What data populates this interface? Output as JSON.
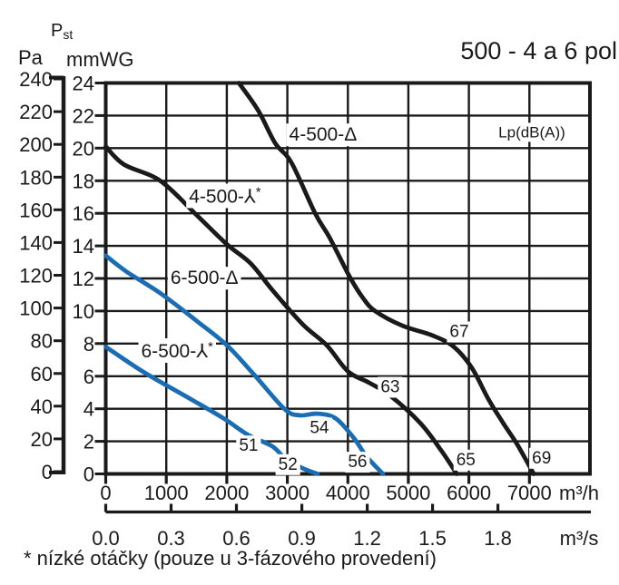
{
  "chart_data": {
    "type": "line",
    "title": "500 - 4 a 6 pol",
    "quantity_label": {
      "main": "P",
      "sub": "st"
    },
    "legend_note": "Lp(dB(A))",
    "legend_note_pos": [
      7040,
      21.0
    ],
    "x_axis": {
      "unit": "m³/h",
      "range": [
        0,
        8000
      ],
      "gridline_step": 1000,
      "ticks": [
        0,
        1000,
        2000,
        3000,
        4000,
        5000,
        6000,
        7000
      ]
    },
    "x_axis_secondary": {
      "unit": "m³/s",
      "conversion_m3h_per_m3s": 3600,
      "ticks": [
        "0.0",
        "0.3",
        "0.6",
        "0.9",
        "1.2",
        "1.5",
        "1.8"
      ]
    },
    "y_axis": {
      "unit": "mmWG",
      "range": [
        0,
        24
      ],
      "gridline_step": 2,
      "ticks": [
        0,
        2,
        4,
        6,
        8,
        10,
        12,
        14,
        16,
        18,
        20,
        22,
        24
      ]
    },
    "y_axis_pa": {
      "unit": "Pa",
      "range": [
        0,
        240
      ],
      "ticks": [
        0,
        20,
        40,
        60,
        80,
        100,
        120,
        140,
        160,
        180,
        200,
        220,
        240
      ]
    },
    "series": [
      {
        "name": "4-500-Δ",
        "slug": "4-500-delta",
        "color": "#1a1a1a",
        "label_pos": [
          3590,
          20.9
        ],
        "points": [
          [
            2200,
            24
          ],
          [
            2520,
            22.3
          ],
          [
            2800,
            20.3
          ],
          [
            3070,
            19.1
          ],
          [
            3460,
            16.0
          ],
          [
            3700,
            14.5
          ],
          [
            4030,
            12.1
          ],
          [
            4250,
            10.8
          ],
          [
            4450,
            10.0
          ],
          [
            4900,
            9.1
          ],
          [
            5400,
            8.5
          ],
          [
            5750,
            7.8
          ],
          [
            6050,
            6.5
          ],
          [
            6320,
            4.6
          ],
          [
            6570,
            3.1
          ],
          [
            6800,
            1.8
          ],
          [
            7070,
            0
          ]
        ]
      },
      {
        "name": "4-500-⅄*",
        "slug": "4-500-star",
        "color": "#1a1a1a",
        "label_pos": [
          1970,
          17.1
        ],
        "points": [
          [
            0,
            20.1
          ],
          [
            300,
            19.0
          ],
          [
            900,
            18.0
          ],
          [
            1500,
            15.9
          ],
          [
            2000,
            14.1
          ],
          [
            2400,
            12.9
          ],
          [
            2750,
            11.3
          ],
          [
            3250,
            9.2
          ],
          [
            3650,
            7.9
          ],
          [
            4000,
            6.3
          ],
          [
            4350,
            5.6
          ],
          [
            4700,
            4.8
          ],
          [
            5200,
            3.1
          ],
          [
            5550,
            1.4
          ],
          [
            5800,
            0
          ]
        ]
      },
      {
        "name": "6-500-Δ",
        "slug": "6-500-delta",
        "color": "#1b6db3",
        "label_pos": [
          1630,
          12.1
        ],
        "points": [
          [
            0,
            13.4
          ],
          [
            350,
            12.4
          ],
          [
            900,
            11.1
          ],
          [
            1500,
            9.4
          ],
          [
            2000,
            7.9
          ],
          [
            2450,
            6.1
          ],
          [
            2950,
            4.0
          ],
          [
            3200,
            3.6
          ],
          [
            3500,
            3.7
          ],
          [
            3800,
            3.4
          ],
          [
            4100,
            2.2
          ],
          [
            4300,
            1.1
          ],
          [
            4580,
            0
          ]
        ]
      },
      {
        "name": "6-500-⅄*",
        "slug": "6-500-star",
        "color": "#1b6db3",
        "label_pos": [
          1180,
          7.6
        ],
        "points": [
          [
            0,
            7.8
          ],
          [
            650,
            6.2
          ],
          [
            1400,
            4.6
          ],
          [
            1950,
            3.4
          ],
          [
            2350,
            2.4
          ],
          [
            2750,
            1.7
          ],
          [
            2950,
            1.0
          ],
          [
            3250,
            0.35
          ],
          [
            3500,
            0
          ]
        ]
      }
    ],
    "noise_labels": [
      {
        "value": "51",
        "pos": [
          2360,
          1.8
        ]
      },
      {
        "value": "52",
        "pos": [
          3010,
          0.65
        ]
      },
      {
        "value": "54",
        "pos": [
          3530,
          2.9
        ]
      },
      {
        "value": "56",
        "pos": [
          4160,
          0.8
        ]
      },
      {
        "value": "63",
        "pos": [
          4700,
          5.4
        ]
      },
      {
        "value": "65",
        "pos": [
          5950,
          0.93
        ]
      },
      {
        "value": "67",
        "pos": [
          5840,
          8.8
        ]
      },
      {
        "value": "69",
        "pos": [
          7200,
          1.04
        ]
      }
    ],
    "footnote": "* nízké otáčky (pouze u 3-fázového provedení)"
  }
}
